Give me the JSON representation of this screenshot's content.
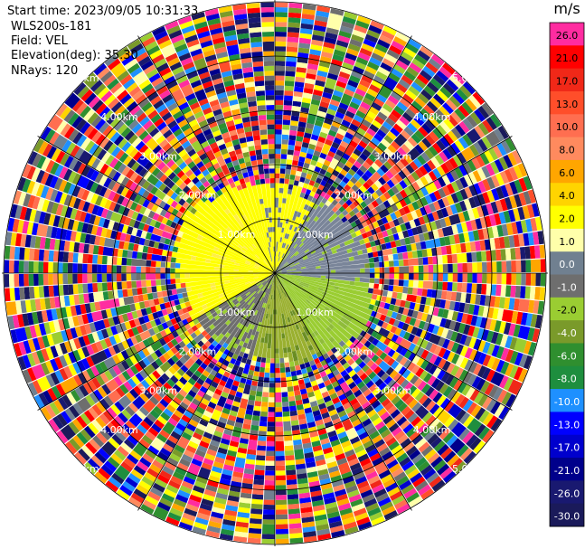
{
  "info": {
    "start_time": "Start time: 2023/09/05 10:31:33",
    "instrument": "WLS200s-181",
    "field": "Field: VEL",
    "elevation": "Elevation(deg): 35.30",
    "nrays": "NRays: 120"
  },
  "chart_data": {
    "type": "heatmap",
    "projection": "polar PPI",
    "field": "VEL",
    "nrays": 120,
    "range_rings_km": [
      {
        "value": 1.0,
        "labels": [
          "1.00km",
          "1.00km",
          "1.00km",
          "1.00km"
        ]
      },
      {
        "value": 2.0,
        "labels": [
          "2.00km",
          "2.00km",
          "2.00km",
          "2.00km"
        ]
      },
      {
        "value": 3.0,
        "labels": [
          "3.00km",
          "3.00km",
          "3.00km",
          "3.00km"
        ]
      },
      {
        "value": 4.0,
        "labels": [
          "4.00km",
          "4.00km",
          "4.00km",
          "4.00km"
        ]
      },
      {
        "value": 5.0,
        "labels": [
          "5.00km",
          "5.00km",
          "5.00km",
          "5.00km"
        ]
      }
    ],
    "colorbar": {
      "unit": "m/s",
      "ticks": [
        "26.0",
        "21.0",
        "17.0",
        "13.0",
        "10.0",
        "8.0",
        "6.0",
        "4.0",
        "2.0",
        "1.0",
        "0.0",
        "-1.0",
        "-2.0",
        "-4.0",
        "-6.0",
        "-8.0",
        "-10.0",
        "-13.0",
        "-17.0",
        "-21.0",
        "-26.0",
        "-30.0"
      ],
      "colors": [
        "#ff2ca0",
        "#ff0000",
        "#f02818",
        "#ff4e2a",
        "#ff6e50",
        "#ff8a5e",
        "#ffa600",
        "#ffd400",
        "#ffff00",
        "#ffffaa",
        "#708090",
        "#6e6e6e",
        "#9acd32",
        "#7a9a2a",
        "#2f8f2f",
        "#1e8e3e",
        "#1e90ff",
        "#0000ff",
        "#0000cd",
        "#00008b",
        "#191970",
        "#1a1a5a"
      ]
    },
    "regions_description_free": true,
    "near_core": {
      "range_km": [
        0.05,
        2.1
      ],
      "dominant_values_ms": [
        2.0,
        1.0,
        0.0,
        -1.0,
        -2.0
      ]
    },
    "far_range": {
      "range_km": [
        2.1,
        5.6
      ],
      "pattern": "noise"
    }
  }
}
